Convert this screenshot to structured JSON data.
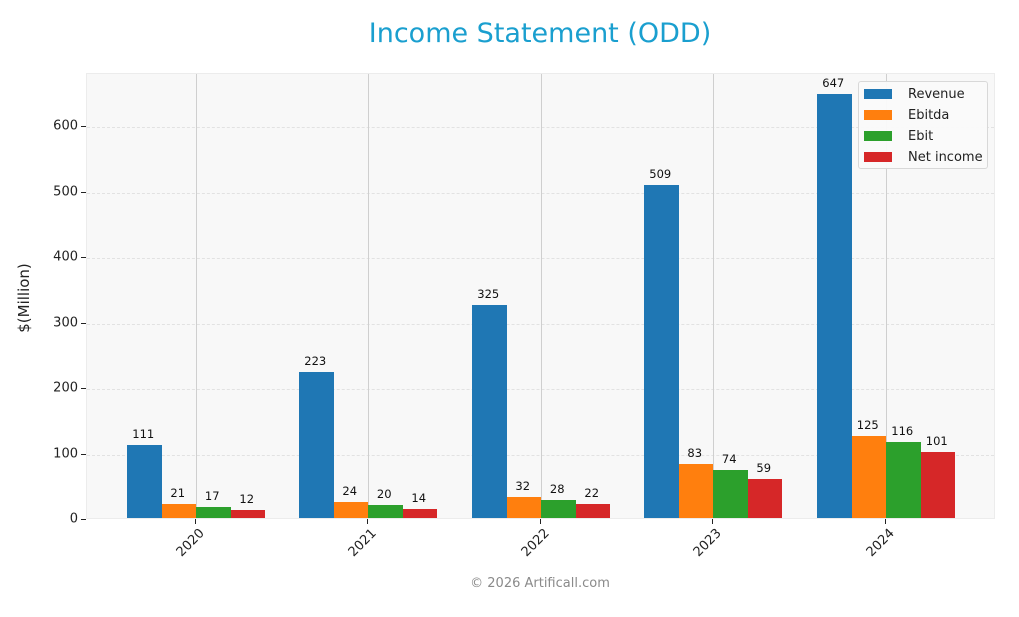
{
  "chart_data": {
    "type": "bar",
    "title": "Income Statement (ODD)",
    "xlabel": "",
    "ylabel": "$(Million)",
    "categories": [
      "2020",
      "2021",
      "2022",
      "2023",
      "2024"
    ],
    "series": [
      {
        "name": "Revenue",
        "color": "#1f77b4",
        "values": [
          111,
          223,
          325,
          509,
          647
        ]
      },
      {
        "name": "Ebitda",
        "color": "#ff7f0e",
        "values": [
          21,
          24,
          32,
          83,
          125
        ]
      },
      {
        "name": "Ebit",
        "color": "#2ca02c",
        "values": [
          17,
          20,
          28,
          74,
          116
        ]
      },
      {
        "name": "Net income",
        "color": "#d62728",
        "values": [
          12,
          14,
          22,
          59,
          101
        ]
      }
    ],
    "yticks": [
      0,
      100,
      200,
      300,
      400,
      500,
      600
    ],
    "ylim": [
      0,
      680
    ],
    "grid": true,
    "legend_position": "upper right",
    "data_labels": true
  },
  "footer": {
    "copyright": "© 2026 Artificall.com"
  }
}
